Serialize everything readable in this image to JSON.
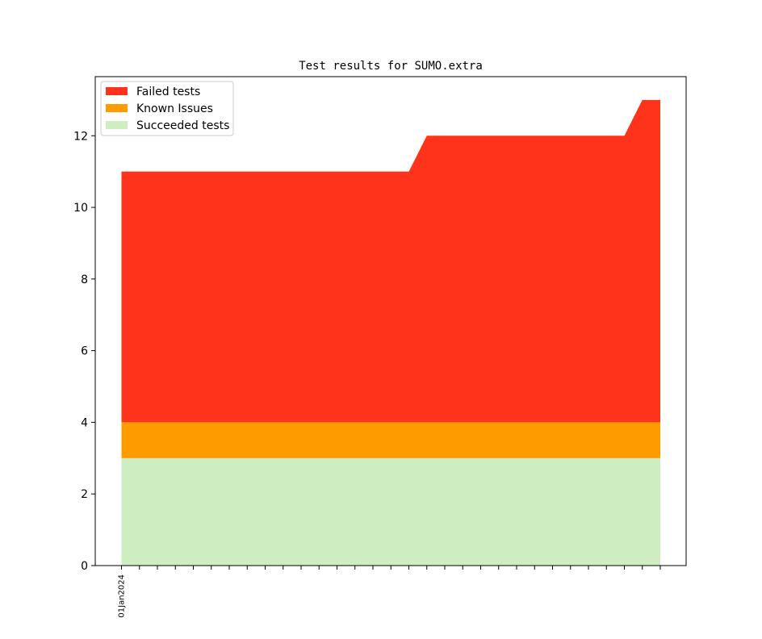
{
  "chart_data": {
    "type": "area",
    "stacked": true,
    "title": "Test results for SUMO.extra",
    "xlabel": "",
    "ylabel": "",
    "x": [
      "01Jan2024",
      "02Jan2024",
      "03Jan2024",
      "04Jan2024",
      "05Jan2024",
      "06Jan2024",
      "07Jan2024",
      "08Jan2024",
      "09Jan2024",
      "10Jan2024",
      "11Jan2024",
      "12Jan2024",
      "13Jan2024",
      "14Jan2024",
      "15Jan2024",
      "16Jan2024",
      "17Jan2024",
      "18Jan2024",
      "19Jan2024",
      "20Jan2024",
      "21Jan2024",
      "22Jan2024",
      "23Jan2024",
      "24Jan2024",
      "25Jan2024",
      "26Jan2024",
      "27Jan2024",
      "28Jan2024",
      "29Jan2024",
      "30Jan2024",
      "31Jan2024"
    ],
    "x_tick_labels_shown": [
      "01Jan2024"
    ],
    "series": [
      {
        "name": "Succeeded tests",
        "color": "#ceedc0",
        "values": [
          3,
          3,
          3,
          3,
          3,
          3,
          3,
          3,
          3,
          3,
          3,
          3,
          3,
          3,
          3,
          3,
          3,
          3,
          3,
          3,
          3,
          3,
          3,
          3,
          3,
          3,
          3,
          3,
          3,
          3,
          3
        ]
      },
      {
        "name": "Known Issues",
        "color": "#fd9b00",
        "values": [
          1,
          1,
          1,
          1,
          1,
          1,
          1,
          1,
          1,
          1,
          1,
          1,
          1,
          1,
          1,
          1,
          1,
          1,
          1,
          1,
          1,
          1,
          1,
          1,
          1,
          1,
          1,
          1,
          1,
          1,
          1
        ]
      },
      {
        "name": "Failed tests",
        "color": "#fe331b",
        "values": [
          7,
          7,
          7,
          7,
          7,
          7,
          7,
          7,
          7,
          7,
          7,
          7,
          7,
          7,
          7,
          7,
          7,
          8,
          8,
          8,
          8,
          8,
          8,
          8,
          8,
          8,
          8,
          8,
          8,
          9,
          9
        ]
      }
    ],
    "legend_order": [
      "Failed tests",
      "Known Issues",
      "Succeeded tests"
    ],
    "legend_position": "upper-left",
    "ylim": [
      0,
      13.65
    ],
    "yticks": [
      "0",
      "2",
      "4",
      "6",
      "8",
      "10",
      "12"
    ],
    "grid": false
  }
}
